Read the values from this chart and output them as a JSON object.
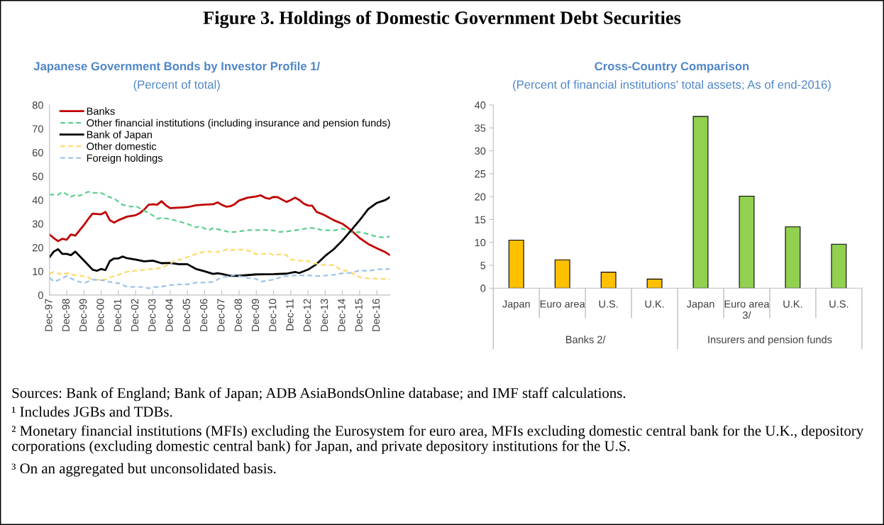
{
  "chart_data": [
    {
      "type": "line",
      "title": "Japanese Government Bonds by Investor Profile 1/",
      "subtitle": "(Percent of total)",
      "legend": "top left",
      "grid": false,
      "xlim": [
        "1997-12",
        "2017-09"
      ],
      "ylim": [
        0,
        80
      ],
      "yticks": [
        0,
        10,
        20,
        30,
        40,
        50,
        60,
        70,
        80
      ],
      "xticks": [
        {
          "value": "1997-12",
          "label": "Dec-97"
        },
        {
          "value": "1998-12",
          "label": "Dec-98"
        },
        {
          "value": "1999-12",
          "label": "Dec-99"
        },
        {
          "value": "2000-12",
          "label": "Dec-00"
        },
        {
          "value": "2001-12",
          "label": "Dec-01"
        },
        {
          "value": "2002-12",
          "label": "Dec-02"
        },
        {
          "value": "2003-12",
          "label": "Dec-03"
        },
        {
          "value": "2004-12",
          "label": "Dec-04"
        },
        {
          "value": "2005-12",
          "label": "Dec-05"
        },
        {
          "value": "2006-12",
          "label": "Dec-06"
        },
        {
          "value": "2007-12",
          "label": "Dec-07"
        },
        {
          "value": "2008-12",
          "label": "Dec-08"
        },
        {
          "value": "2009-12",
          "label": "Dec-09"
        },
        {
          "value": "2010-12",
          "label": "Dec-10"
        },
        {
          "value": "2011-12",
          "label": "Dec-11"
        },
        {
          "value": "2012-12",
          "label": "Dec-12"
        },
        {
          "value": "2013-12",
          "label": "Dec-13"
        },
        {
          "value": "2014-12",
          "label": "Dec-14"
        },
        {
          "value": "2015-12",
          "label": "Dec-15"
        },
        {
          "value": "2016-12",
          "label": "Dec-16"
        }
      ],
      "series": [
        {
          "name": "Banks",
          "color": "#c00000",
          "line_style": "solid",
          "x": [
            "1997-12",
            "1998-03",
            "1998-06",
            "1998-09",
            "1998-12",
            "1999-03",
            "1999-06",
            "1999-12",
            "2000-03",
            "2000-06",
            "2000-12",
            "2001-03",
            "2001-06",
            "2001-09",
            "2001-12",
            "2002-06",
            "2002-12",
            "2003-03",
            "2003-06",
            "2003-09",
            "2003-12",
            "2004-03",
            "2004-06",
            "2004-09",
            "2004-12",
            "2005-06",
            "2005-12",
            "2006-06",
            "2006-12",
            "2007-06",
            "2007-09",
            "2007-12",
            "2008-03",
            "2008-06",
            "2008-09",
            "2008-12",
            "2009-06",
            "2009-12",
            "2010-03",
            "2010-06",
            "2010-09",
            "2010-12",
            "2011-03",
            "2011-09",
            "2011-12",
            "2012-03",
            "2012-06",
            "2012-09",
            "2012-12",
            "2013-03",
            "2013-06",
            "2013-09",
            "2013-12",
            "2014-06",
            "2014-12",
            "2015-06",
            "2015-12",
            "2016-06",
            "2016-12",
            "2017-06",
            "2017-09"
          ],
          "values": [
            25.5,
            24,
            22.7,
            23.7,
            23.3,
            25.5,
            25,
            29.5,
            32,
            34.3,
            34,
            35,
            31.5,
            30.5,
            31.5,
            33,
            33.6,
            34.5,
            36,
            38,
            38.2,
            38,
            39.5,
            37.8,
            36.6,
            36.8,
            37,
            37.8,
            38.1,
            38.2,
            39,
            38,
            37.2,
            37.4,
            38.3,
            39.8,
            41,
            41.5,
            42,
            41,
            40.5,
            41.3,
            41.2,
            39.2,
            40,
            41,
            40,
            38.5,
            37.7,
            37.6,
            35,
            34.3,
            33.5,
            31.5,
            30,
            27.3,
            24,
            21.5,
            19.7,
            18,
            16.8
          ]
        },
        {
          "name": "Other financial institutions (including insurance and pension funds)",
          "color": "#5ccf8c",
          "line_style": "dashed",
          "x": [
            "1997-12",
            "1998-06",
            "1998-09",
            "1999-03",
            "1999-06",
            "1999-09",
            "2000-03",
            "2000-06",
            "2000-12",
            "2001-06",
            "2001-09",
            "2002-03",
            "2002-09",
            "2002-12",
            "2003-06",
            "2003-12",
            "2004-03",
            "2004-06",
            "2004-12",
            "2005-06",
            "2005-12",
            "2006-06",
            "2006-09",
            "2006-12",
            "2007-03",
            "2007-06",
            "2007-12",
            "2008-06",
            "2008-12",
            "2009-06",
            "2009-12",
            "2010-06",
            "2010-12",
            "2011-03",
            "2011-09",
            "2011-12",
            "2012-06",
            "2012-12",
            "2013-03",
            "2013-09",
            "2013-12",
            "2014-06",
            "2014-12",
            "2015-06",
            "2015-12",
            "2016-06",
            "2016-12",
            "2017-06",
            "2017-09"
          ],
          "values": [
            42.3,
            42.2,
            43.5,
            41.3,
            42.2,
            41.8,
            43.5,
            43,
            43,
            41.2,
            40.6,
            38,
            37.2,
            37.5,
            35.5,
            33.5,
            32.1,
            32.5,
            32,
            31,
            30,
            28.5,
            29,
            28,
            27.3,
            28.2,
            27.3,
            26.4,
            26.8,
            27.3,
            27.3,
            27.4,
            27.2,
            26.6,
            26.7,
            27,
            27.5,
            28.2,
            28.2,
            27.5,
            27.3,
            27.2,
            28,
            26.4,
            26.5,
            25.7,
            24.5,
            24.2,
            24.7
          ]
        },
        {
          "name": "Bank of Japan",
          "color": "#000000",
          "line_style": "solid",
          "x": [
            "1997-12",
            "1998-03",
            "1998-06",
            "1998-09",
            "1998-12",
            "1999-03",
            "1999-06",
            "1999-12",
            "2000-06",
            "2000-09",
            "2000-12",
            "2001-03",
            "2001-06",
            "2001-09",
            "2001-12",
            "2002-03",
            "2002-06",
            "2002-12",
            "2003-06",
            "2003-12",
            "2004-06",
            "2004-12",
            "2005-06",
            "2005-12",
            "2006-06",
            "2006-12",
            "2007-06",
            "2007-09",
            "2007-12",
            "2008-06",
            "2008-12",
            "2009-12",
            "2010-12",
            "2011-09",
            "2012-03",
            "2012-06",
            "2012-12",
            "2013-06",
            "2013-12",
            "2014-06",
            "2014-12",
            "2015-06",
            "2015-12",
            "2016-06",
            "2016-12",
            "2017-06",
            "2017-09"
          ],
          "values": [
            15.9,
            18.3,
            19.3,
            17.3,
            17.3,
            16.8,
            18.3,
            14.5,
            10.7,
            10.2,
            11,
            10.5,
            14.3,
            15.4,
            15.4,
            16.2,
            15.5,
            14.9,
            14.2,
            14.5,
            13.4,
            13.5,
            13,
            13,
            11,
            10,
            8.9,
            9.2,
            8.9,
            8.1,
            8.1,
            8.7,
            8.8,
            9,
            9.7,
            9.3,
            10.7,
            13,
            16.5,
            19.3,
            23,
            27.2,
            31.5,
            36.2,
            38.8,
            40,
            41.2
          ]
        },
        {
          "name": "Other domestic",
          "color": "#ffd966",
          "line_style": "dashed",
          "x": [
            "1997-12",
            "1998-03",
            "1998-09",
            "1998-12",
            "1999-06",
            "1999-12",
            "2000-03",
            "2000-06",
            "2000-12",
            "2001-03",
            "2001-06",
            "2001-12",
            "2002-06",
            "2002-12",
            "2003-06",
            "2003-12",
            "2004-06",
            "2004-12",
            "2005-03",
            "2005-09",
            "2005-12",
            "2006-06",
            "2006-12",
            "2007-03",
            "2007-06",
            "2007-12",
            "2008-03",
            "2008-06",
            "2008-12",
            "2009-06",
            "2009-12",
            "2010-06",
            "2010-09",
            "2010-12",
            "2011-06",
            "2011-09",
            "2011-12",
            "2012-06",
            "2012-12",
            "2013-03",
            "2013-09",
            "2013-12",
            "2014-06",
            "2014-12",
            "2015-03",
            "2015-06",
            "2015-12",
            "2016-06",
            "2016-12",
            "2017-09"
          ],
          "values": [
            9,
            9.7,
            8.5,
            9.2,
            8.3,
            7.9,
            7.5,
            6.3,
            6.5,
            6.5,
            7.5,
            8.5,
            9.8,
            10.2,
            10.7,
            11,
            11.4,
            13.2,
            14.5,
            15.2,
            16,
            17.3,
            18.3,
            18.4,
            18,
            18.4,
            19.2,
            18.9,
            19.2,
            18.8,
            17.2,
            17.3,
            17.6,
            16.8,
            17.3,
            16.8,
            15,
            14.5,
            14.3,
            13.5,
            12.8,
            12.6,
            12.6,
            10.2,
            10.3,
            9.5,
            7.5,
            7,
            6.9,
            6.6
          ]
        },
        {
          "name": "Foreign holdings",
          "color": "#9dc3e6",
          "line_style": "dashed",
          "x": [
            "1997-12",
            "1998-03",
            "1998-06",
            "1998-12",
            "1999-06",
            "1999-12",
            "2000-06",
            "2000-12",
            "2001-06",
            "2001-12",
            "2002-06",
            "2002-12",
            "2003-06",
            "2003-09",
            "2003-12",
            "2004-06",
            "2004-12",
            "2005-06",
            "2005-12",
            "2006-06",
            "2006-12",
            "2007-06",
            "2007-12",
            "2008-06",
            "2008-09",
            "2008-12",
            "2009-06",
            "2009-12",
            "2010-03",
            "2010-12",
            "2011-06",
            "2011-12",
            "2012-06",
            "2012-12",
            "2013-06",
            "2013-12",
            "2014-06",
            "2014-12",
            "2015-06",
            "2015-12",
            "2016-06",
            "2016-12",
            "2017-09"
          ],
          "values": [
            7.3,
            5.7,
            6.2,
            8,
            6.1,
            5,
            6.5,
            6.3,
            5.5,
            5,
            3.5,
            3.4,
            3.4,
            2.8,
            3.3,
            3.5,
            4.2,
            4.5,
            4.5,
            5.2,
            5.3,
            5.5,
            7.5,
            8,
            8.5,
            8,
            7.2,
            6.8,
            5.6,
            6.5,
            7.7,
            8.2,
            8.3,
            8.3,
            8,
            8.2,
            8.5,
            9.2,
            9.3,
            10.4,
            10.1,
            10.8,
            11
          ]
        }
      ]
    },
    {
      "type": "bar",
      "title": "Cross-Country Comparison",
      "subtitle": "(Percent of financial institutions' total assets; As of end-2016)",
      "grid": false,
      "categories": [
        "Japan",
        "Euro area",
        "U.S.",
        "U.K.",
        "Japan",
        "Euro area\n3/",
        "U.K.",
        "U.S."
      ],
      "values": [
        10.5,
        6.2,
        3.5,
        2.0,
        37.5,
        20.1,
        13.4,
        9.6
      ],
      "colors": [
        "#ffc000",
        "#ffc000",
        "#ffc000",
        "#ffc000",
        "#92d050",
        "#92d050",
        "#92d050",
        "#92d050"
      ],
      "ylim": [
        0,
        40
      ],
      "yticks": [
        0,
        5,
        10,
        15,
        20,
        25,
        30,
        35,
        40
      ],
      "annotations": [
        "Banks 2/",
        "Insurers and pension funds"
      ]
    },
    {
      "type": "other",
      "title": "Figure 3. Holdings of Domestic Government Debt Securities",
      "annotations": [
        "Sources: Bank of England; Bank of Japan; ADB AsiaBondsOnline database; and IMF staff calculations.",
        "¹ Includes JGBs and TDBs.",
        "² Monetary financial institutions (MFIs) excluding the Eurosystem for euro area, MFIs excluding domestic central bank for the U.K., depository corporations (excluding domestic central bank) for Japan, and private depository institutions for the U.S.",
        "³ On an aggregated but unconsolidated basis."
      ]
    }
  ]
}
